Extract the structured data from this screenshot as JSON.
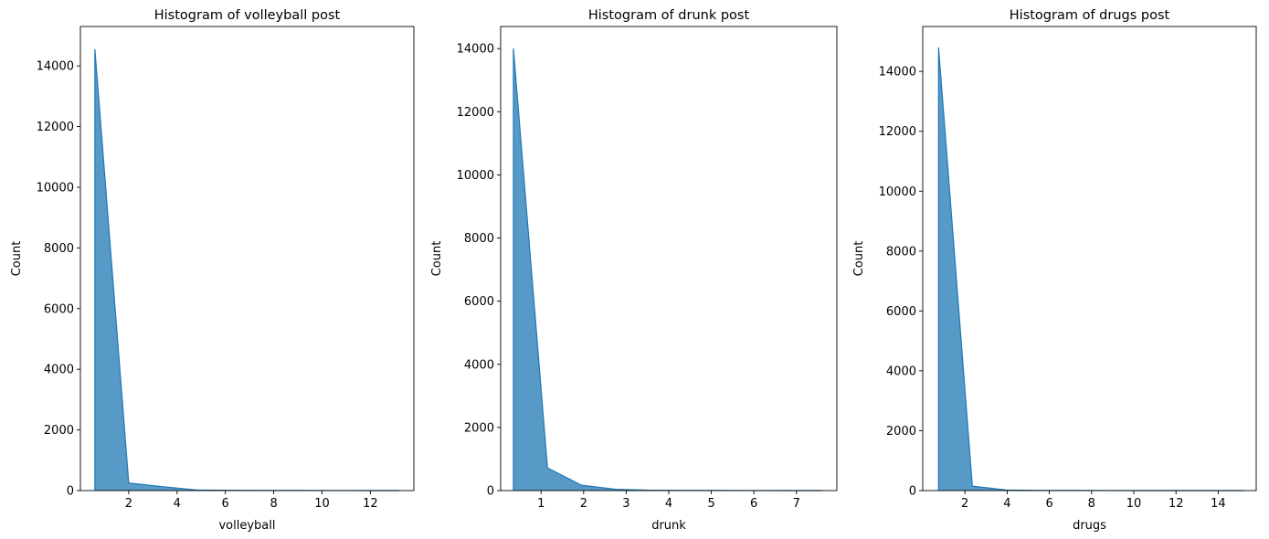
{
  "chart_data": [
    {
      "type": "area",
      "title": "Histogram of volleyball post",
      "xlabel": "volleyball",
      "ylabel": "Count",
      "xlim": [
        0.0,
        13.8
      ],
      "ylim": [
        0,
        15300
      ],
      "xticks": [
        2,
        4,
        6,
        8,
        10,
        12
      ],
      "yticks": [
        0,
        2000,
        4000,
        6000,
        8000,
        10000,
        12000,
        14000
      ],
      "grid": false,
      "color": "#1f77b4",
      "fill_alpha": 0.75,
      "points": [
        {
          "x": 0.6,
          "y": 14550
        },
        {
          "x": 2.0,
          "y": 250
        },
        {
          "x": 3.4,
          "y": 130
        },
        {
          "x": 4.8,
          "y": 20
        },
        {
          "x": 6.2,
          "y": 10
        },
        {
          "x": 7.6,
          "y": 5
        },
        {
          "x": 9.0,
          "y": 3
        },
        {
          "x": 10.4,
          "y": 2
        },
        {
          "x": 11.8,
          "y": 1
        },
        {
          "x": 13.2,
          "y": 1
        }
      ]
    },
    {
      "type": "area",
      "title": "Histogram of drunk post",
      "xlabel": "drunk",
      "ylabel": "Count",
      "xlim": [
        0.05,
        7.95
      ],
      "ylim": [
        0,
        14700
      ],
      "xticks": [
        1,
        2,
        3,
        4,
        5,
        6,
        7
      ],
      "yticks": [
        0,
        2000,
        4000,
        6000,
        8000,
        10000,
        12000,
        14000
      ],
      "grid": false,
      "color": "#1f77b4",
      "fill_alpha": 0.75,
      "points": [
        {
          "x": 0.35,
          "y": 14000
        },
        {
          "x": 1.15,
          "y": 720
        },
        {
          "x": 1.95,
          "y": 170
        },
        {
          "x": 2.75,
          "y": 40
        },
        {
          "x": 3.55,
          "y": 10
        },
        {
          "x": 4.35,
          "y": 5
        },
        {
          "x": 5.15,
          "y": 3
        },
        {
          "x": 5.95,
          "y": 2
        },
        {
          "x": 6.75,
          "y": 1
        },
        {
          "x": 7.6,
          "y": 1
        }
      ]
    },
    {
      "type": "area",
      "title": "Histogram of drugs post",
      "xlabel": "drugs",
      "ylabel": "Count",
      "xlim": [
        0.0,
        15.8
      ],
      "ylim": [
        0,
        15500
      ],
      "xticks": [
        2,
        4,
        6,
        8,
        10,
        12,
        14
      ],
      "yticks": [
        0,
        2000,
        4000,
        6000,
        8000,
        10000,
        12000,
        14000
      ],
      "grid": false,
      "color": "#1f77b4",
      "fill_alpha": 0.75,
      "points": [
        {
          "x": 0.75,
          "y": 14800
        },
        {
          "x": 2.35,
          "y": 150
        },
        {
          "x": 3.95,
          "y": 20
        },
        {
          "x": 5.55,
          "y": 5
        },
        {
          "x": 7.15,
          "y": 3
        },
        {
          "x": 8.75,
          "y": 2
        },
        {
          "x": 10.35,
          "y": 1
        },
        {
          "x": 11.95,
          "y": 1
        },
        {
          "x": 13.55,
          "y": 1
        },
        {
          "x": 15.2,
          "y": 1
        }
      ]
    }
  ]
}
